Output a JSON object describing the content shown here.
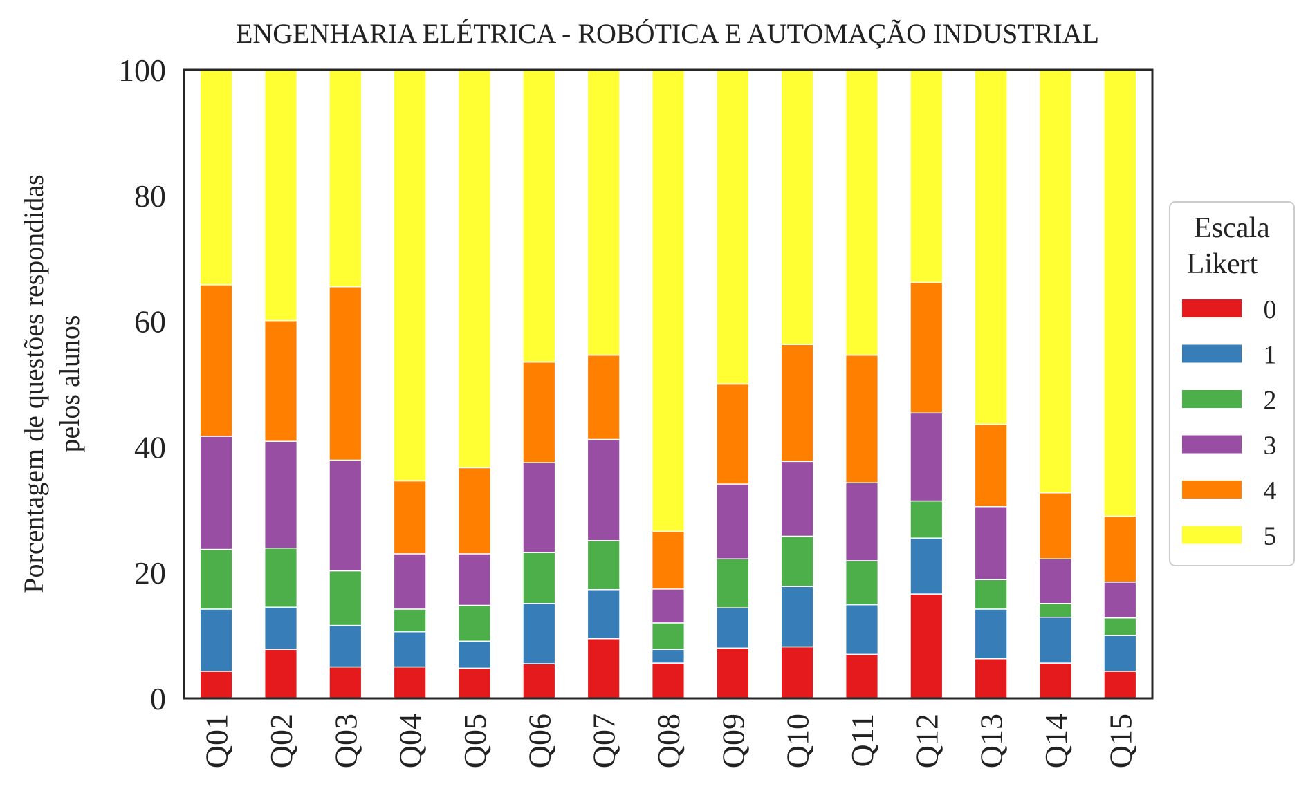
{
  "chart_data": {
    "type": "bar",
    "stacked": true,
    "title": "ENGENHARIA ELÉTRICA - ROBÓTICA E AUTOMAÇÃO INDUSTRIAL",
    "ylabel_lines": [
      "Porcentagem de questões respondidas",
      "pelos alunos"
    ],
    "xlabel": "",
    "ylim": [
      0,
      100
    ],
    "yticks": [
      0,
      20,
      40,
      60,
      80,
      100
    ],
    "categories": [
      "Q01",
      "Q02",
      "Q03",
      "Q04",
      "Q05",
      "Q06",
      "Q07",
      "Q08",
      "Q09",
      "Q10",
      "Q11",
      "Q12",
      "Q13",
      "Q14",
      "Q15"
    ],
    "legend": {
      "title_lines": [
        "Escala",
        "Likert"
      ],
      "placement": "right"
    },
    "grid": false,
    "series": [
      {
        "name": "0",
        "color": "#e41a1c",
        "values": [
          4.3,
          7.8,
          5.0,
          5.0,
          4.8,
          5.5,
          9.5,
          5.6,
          8.0,
          8.2,
          7.0,
          16.6,
          6.3,
          5.6,
          4.3
        ]
      },
      {
        "name": "1",
        "color": "#377eb8",
        "values": [
          9.9,
          6.7,
          6.6,
          5.6,
          4.3,
          9.6,
          7.8,
          2.2,
          6.4,
          9.6,
          7.9,
          8.9,
          7.9,
          7.3,
          5.7
        ]
      },
      {
        "name": "2",
        "color": "#4daf4a",
        "values": [
          9.5,
          9.4,
          8.7,
          3.6,
          5.7,
          8.1,
          7.8,
          4.2,
          7.8,
          8.0,
          7.0,
          5.9,
          4.7,
          2.2,
          2.8
        ]
      },
      {
        "name": "3",
        "color": "#984ea3",
        "values": [
          18.0,
          17.0,
          17.6,
          8.8,
          8.2,
          14.3,
          16.1,
          5.4,
          11.9,
          11.9,
          12.4,
          14.0,
          11.6,
          7.1,
          5.7
        ]
      },
      {
        "name": "4",
        "color": "#ff7f00",
        "values": [
          24.1,
          19.2,
          27.6,
          11.6,
          13.7,
          16.0,
          13.4,
          9.2,
          15.9,
          18.6,
          20.3,
          20.8,
          13.1,
          10.5,
          10.5
        ]
      },
      {
        "name": "5",
        "color": "#ffff33",
        "values": [
          34.2,
          39.9,
          34.5,
          65.4,
          63.3,
          46.5,
          45.4,
          73.4,
          50.0,
          43.7,
          45.4,
          33.8,
          56.4,
          67.3,
          71.0
        ]
      }
    ]
  }
}
